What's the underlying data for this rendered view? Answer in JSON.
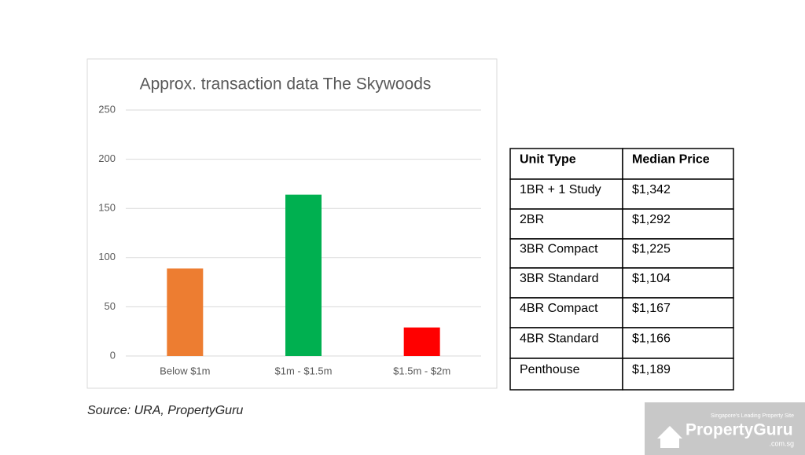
{
  "chart_data": {
    "type": "bar",
    "title": "Approx. transaction data The Skywoods",
    "categories": [
      "Below $1m",
      "$1m - $1.5m",
      "$1.5m - $2m"
    ],
    "values": [
      89,
      164,
      29
    ],
    "colors": [
      "#ed7d31",
      "#00b050",
      "#ff0000"
    ],
    "ylim": [
      0,
      250
    ],
    "yticks": [
      0,
      50,
      100,
      150,
      200,
      250
    ],
    "grid": true
  },
  "table": {
    "headers": [
      "Unit Type",
      "Median Price"
    ],
    "rows": [
      [
        "1BR + 1 Study",
        "$1,342"
      ],
      [
        "2BR",
        "$1,292"
      ],
      [
        "3BR Compact",
        "$1,225"
      ],
      [
        "3BR Standard",
        "$1,104"
      ],
      [
        "4BR Compact",
        "$1,167"
      ],
      [
        "4BR Standard",
        "$1,166"
      ],
      [
        "Penthouse",
        "$1,189"
      ]
    ]
  },
  "source": "Source: URA, PropertyGuru",
  "watermark": {
    "tagline": "Singapore's Leading Property Site",
    "brand": "PropertyGuru",
    "domain": ".com.sg"
  }
}
